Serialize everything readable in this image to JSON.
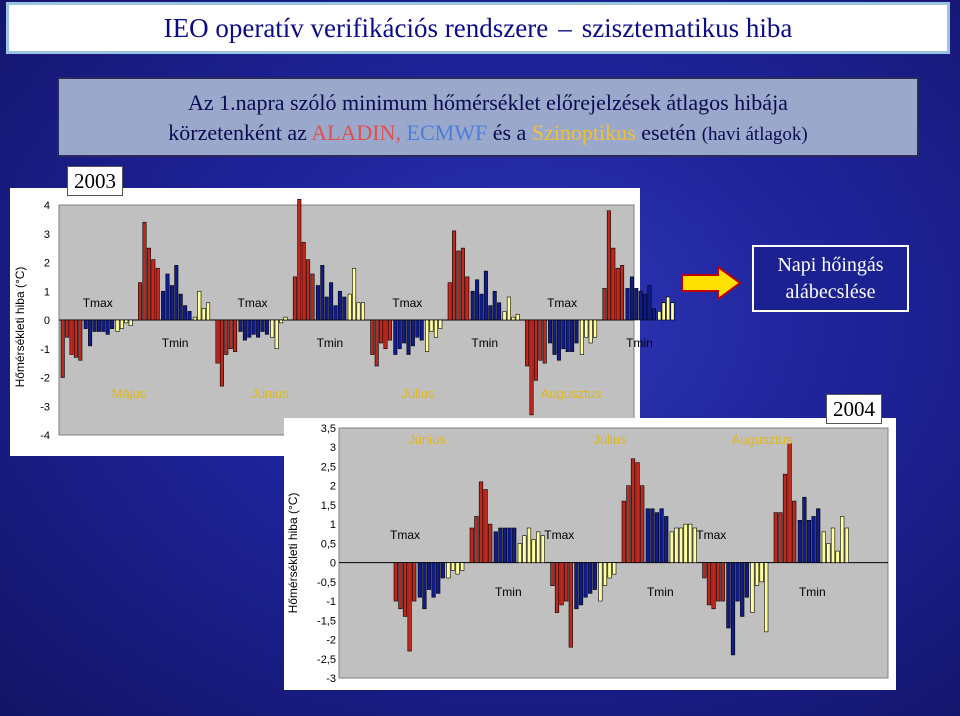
{
  "header": {
    "title_part1": "IEO operatív verifikációs rendszere",
    "title_sep": "–",
    "title_part2": "szisztematikus hiba"
  },
  "subtitle": {
    "line1": "Az 1.napra szóló minimum hőmérséklet előrejelzések átlagos hibája",
    "line2_prefix": "körzetenként az",
    "aladin": "ALADIN,",
    "ecmwf": "ECMWF",
    "and": "és a",
    "szinoptikus": "Szinoptikus",
    "line2_suffix": "esetén",
    "note": "(havi átlagok)"
  },
  "callout": {
    "line1": "Napi hőingás",
    "line2": "alábecslése",
    "arrow_icon": "right-arrow-icon"
  },
  "colors": {
    "aladin": "#c0281e",
    "ecmwf": "#101c8c",
    "szinoptikus": "#ffffa0",
    "plot_bg": "#c0c0c0"
  },
  "chart_data": [
    {
      "type": "bar",
      "year_label": "2003",
      "ylabel": "Hőmérsékleti hiba (°C)",
      "ylim": [
        -4,
        4
      ],
      "yticks": [
        "4",
        "3",
        "2",
        "1",
        "0",
        "-1",
        "-2",
        "-3",
        "-4"
      ],
      "months": [
        "Május",
        "Június",
        "Július",
        "Augusztus"
      ],
      "group_labels": {
        "tmax": "Tmax",
        "tmin": "Tmin"
      },
      "series_order": [
        "aladin",
        "ecmwf",
        "szinoptikus"
      ],
      "groups": [
        {
          "month": "Május",
          "var": "Tmax",
          "aladin": [
            -2.0,
            -0.6,
            -1.2,
            -1.3,
            -1.4
          ],
          "ecmwf": [
            -0.3,
            -0.9,
            -0.4,
            -0.4,
            -0.4,
            -0.5,
            -0.3
          ],
          "szinoptikus": [
            -0.4,
            -0.3,
            -0.1,
            -0.2
          ]
        },
        {
          "month": "Május",
          "var": "Tmin",
          "aladin": [
            1.3,
            3.4,
            2.5,
            2.1,
            1.8
          ],
          "ecmwf": [
            1.0,
            1.6,
            1.2,
            1.9,
            0.9,
            0.5,
            0.3
          ],
          "szinoptikus": [
            0.1,
            1.0,
            0.4,
            0.6
          ]
        },
        {
          "month": "Június",
          "var": "Tmax",
          "aladin": [
            -1.5,
            -2.3,
            -1.2,
            -1.0,
            -1.1
          ],
          "ecmwf": [
            -0.4,
            -0.7,
            -0.6,
            -0.5,
            -0.6,
            -0.4,
            -0.5
          ],
          "szinoptikus": [
            -0.6,
            -1.0,
            -0.1,
            0.1
          ]
        },
        {
          "month": "Június",
          "var": "Tmin",
          "aladin": [
            1.5,
            4.2,
            2.7,
            2.1,
            1.6
          ],
          "ecmwf": [
            1.2,
            1.9,
            0.8,
            1.3,
            0.5,
            1.0,
            0.8
          ],
          "szinoptikus": [
            0.9,
            1.8,
            0.6,
            0.6
          ]
        },
        {
          "month": "Július",
          "var": "Tmax",
          "aladin": [
            -1.2,
            -1.6,
            -0.8,
            -1.0,
            -0.7
          ],
          "ecmwf": [
            -1.2,
            -1.0,
            -0.8,
            -1.2,
            -0.9,
            -0.6,
            -0.7
          ],
          "szinoptikus": [
            -1.1,
            -0.4,
            -0.6,
            -0.3
          ]
        },
        {
          "month": "Július",
          "var": "Tmin",
          "aladin": [
            1.3,
            3.1,
            2.4,
            2.5,
            1.5
          ],
          "ecmwf": [
            1.0,
            1.4,
            0.9,
            1.7,
            0.5,
            1.0,
            0.6
          ],
          "szinoptikus": [
            0.3,
            0.8,
            0.1,
            0.2
          ]
        },
        {
          "month": "Augusztus",
          "var": "Tmax",
          "aladin": [
            -1.6,
            -3.3,
            -2.1,
            -1.4,
            -1.5
          ],
          "ecmwf": [
            -0.8,
            -1.2,
            -1.4,
            -1.0,
            -1.1,
            -1.1,
            -0.8
          ],
          "szinoptikus": [
            -1.2,
            -0.6,
            -0.8,
            -0.6
          ]
        },
        {
          "month": "Augusztus",
          "var": "Tmin",
          "aladin": [
            1.1,
            3.8,
            2.5,
            1.8,
            1.9
          ],
          "ecmwf": [
            1.1,
            1.5,
            1.1,
            1.0,
            0.9,
            1.2,
            0.4
          ],
          "szinoptikus": [
            0.3,
            0.6,
            0.8,
            0.6
          ]
        }
      ]
    },
    {
      "type": "bar",
      "year_label": "2004",
      "ylabel": "Hőmérsékleti hiba (°C)",
      "ylim": [
        -3,
        3.5
      ],
      "yticks": [
        "3,5",
        "3",
        "2,5",
        "2",
        "1,5",
        "1",
        "0,5",
        "0",
        "-0,5",
        "-1",
        "-1,5",
        "-2",
        "-2,5",
        "-3"
      ],
      "months": [
        "Június",
        "Július",
        "Augusztus"
      ],
      "group_labels": {
        "tmax": "Tmax",
        "tmin": "Tmin"
      },
      "series_order": [
        "aladin",
        "ecmwf",
        "szinoptikus"
      ],
      "groups": [
        {
          "month": "Június",
          "var": "Tmax",
          "aladin": [
            -1.0,
            -1.2,
            -1.4,
            -2.3,
            -1.0
          ],
          "ecmwf": [
            -0.9,
            -1.2,
            -0.7,
            -0.9,
            -0.8,
            -0.4
          ],
          "szinoptikus": [
            -0.4,
            -0.2,
            -0.3,
            -0.2
          ]
        },
        {
          "month": "Június",
          "var": "Tmin",
          "aladin": [
            0.9,
            1.2,
            2.1,
            1.9,
            1.0
          ],
          "ecmwf": [
            0.8,
            0.9,
            0.9,
            0.9,
            0.9
          ],
          "szinoptikus": [
            0.5,
            0.7,
            0.9,
            0.6,
            0.8,
            0.7
          ]
        },
        {
          "month": "Július",
          "var": "Tmax",
          "aladin": [
            -0.6,
            -1.3,
            -1.1,
            -1.0,
            -2.2
          ],
          "ecmwf": [
            -1.2,
            -1.1,
            -0.9,
            -0.8,
            -0.7
          ],
          "szinoptikus": [
            -1.0,
            -0.6,
            -0.4,
            -0.3
          ]
        },
        {
          "month": "Július",
          "var": "Tmin",
          "aladin": [
            1.6,
            2.0,
            2.7,
            2.6,
            2.0
          ],
          "ecmwf": [
            1.4,
            1.4,
            1.3,
            1.4,
            1.2
          ],
          "szinoptikus": [
            0.8,
            0.9,
            0.9,
            1.0,
            1.0,
            0.9
          ]
        },
        {
          "month": "Augusztus",
          "var": "Tmax",
          "aladin": [
            -0.4,
            -1.1,
            -1.2,
            -1.0,
            -1.0
          ],
          "ecmwf": [
            -1.7,
            -2.4,
            -1.0,
            -1.4,
            -0.9
          ],
          "szinoptikus": [
            -1.3,
            -0.6,
            -0.5,
            -1.8
          ]
        },
        {
          "month": "Augusztus",
          "var": "Tmin",
          "aladin": [
            1.3,
            1.3,
            2.3,
            3.1,
            1.6
          ],
          "ecmwf": [
            1.1,
            1.7,
            1.1,
            1.2,
            1.4
          ],
          "szinoptikus": [
            0.8,
            0.5,
            0.9,
            0.3,
            1.2,
            0.9
          ]
        }
      ]
    }
  ]
}
